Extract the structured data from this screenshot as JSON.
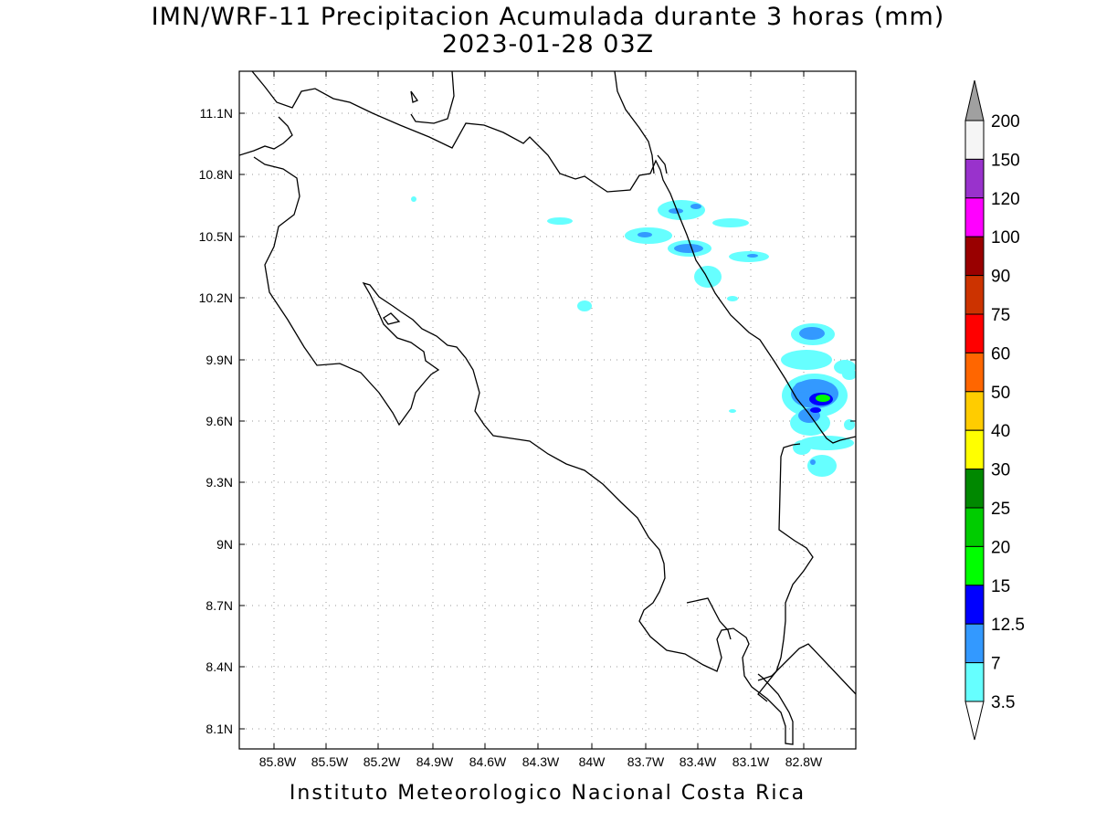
{
  "title": "IMN/WRF-11 Precipitacion Acumulada durante 3 horas (mm)",
  "subtitle": "2023-01-28 03Z",
  "footer": "Instituto Meteorologico Nacional Costa Rica",
  "map": {
    "lon_range": [
      -86.05,
      -82.57
    ],
    "lat_range": [
      8.0,
      11.29
    ],
    "lat_ticks": [
      "11.1N",
      "10.8N",
      "10.5N",
      "10.2N",
      "9.9N",
      "9.6N",
      "9.3N",
      "9N",
      "8.7N",
      "8.4N",
      "8.1N"
    ],
    "lon_ticks": [
      "85.8W",
      "85.5W",
      "85.2W",
      "84.9W",
      "84.6W",
      "84.3W",
      "84W",
      "83.7W",
      "83.4W",
      "83.1W",
      "82.8W"
    ]
  },
  "legend": {
    "labels": [
      "200",
      "150",
      "120",
      "100",
      "90",
      "75",
      "60",
      "50",
      "40",
      "30",
      "25",
      "20",
      "15",
      "12.5",
      "7",
      "3.5"
    ],
    "colors": [
      "#f5f5f5",
      "#9932cc",
      "#ff00ff",
      "#990000",
      "#cc3300",
      "#ff0000",
      "#ff6600",
      "#ffcc00",
      "#ffff00",
      "#008800",
      "#00cc00",
      "#00ff00",
      "#0000ff",
      "#3399ff",
      "#66ffff"
    ],
    "top_arrow_color": "#a0a0a0",
    "bottom_arrow_color": "#ffffff"
  }
}
